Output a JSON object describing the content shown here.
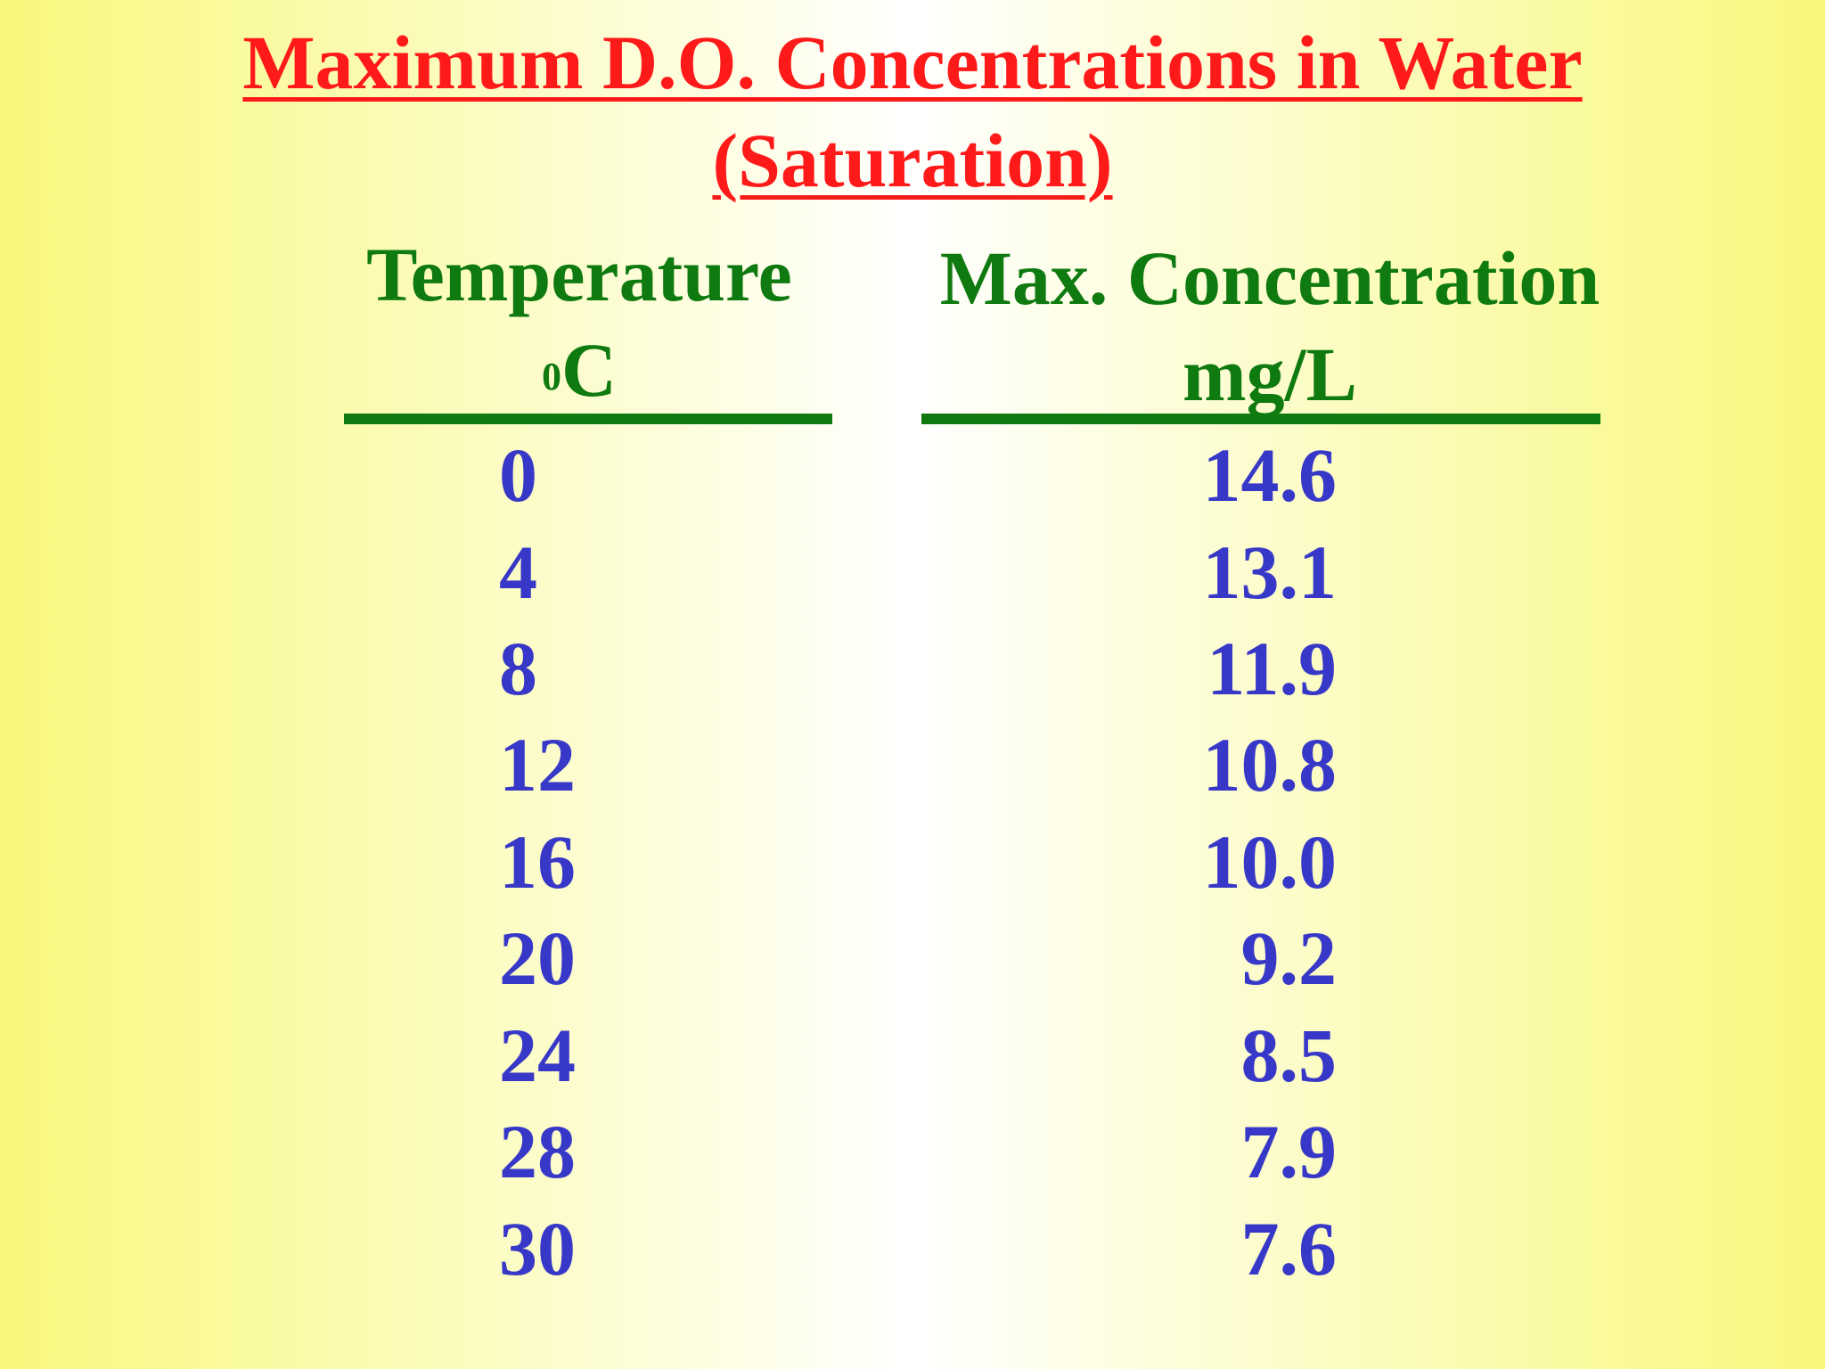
{
  "title": {
    "line1": "Maximum D.O. Concentrations in Water",
    "line2": "(Saturation)"
  },
  "headers": {
    "temperature_label": "Temperature",
    "temperature_superscript": "0",
    "temperature_unit": "C",
    "concentration_label": "Max. Concentration",
    "concentration_unit": "mg/L"
  },
  "rows": [
    {
      "temp": "0",
      "conc": "14.6"
    },
    {
      "temp": "4",
      "conc": "13.1"
    },
    {
      "temp": "8",
      "conc": "11.9"
    },
    {
      "temp": "12",
      "conc": "10.8"
    },
    {
      "temp": "16",
      "conc": "10.0"
    },
    {
      "temp": "20",
      "conc": "9.2"
    },
    {
      "temp": "24",
      "conc": "8.5"
    },
    {
      "temp": "28",
      "conc": "7.9"
    },
    {
      "temp": "30",
      "conc": "7.6"
    }
  ],
  "colors": {
    "title": "#ff1a1a",
    "header": "#0f7a0f",
    "values": "#3838c8",
    "background_edge": "#f8f87c",
    "background_center": "#ffffff"
  }
}
